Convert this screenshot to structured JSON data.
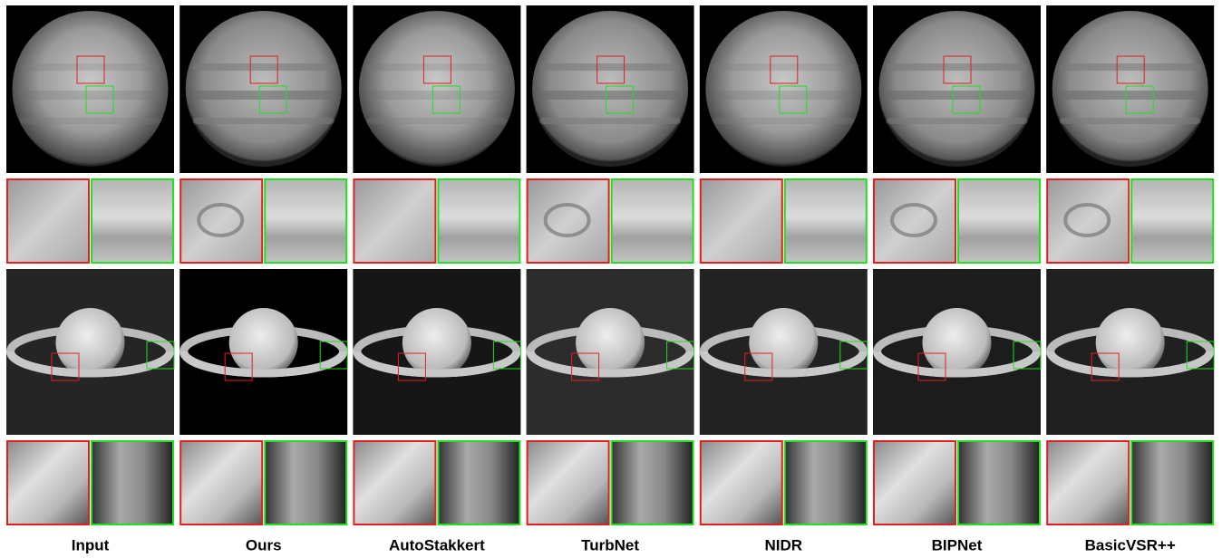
{
  "figure": {
    "columns": [
      "Input",
      "Ours",
      "AutoStakkert",
      "TurbNet",
      "NIDR",
      "BIPNet",
      "BasicVSR++"
    ]
  }
}
